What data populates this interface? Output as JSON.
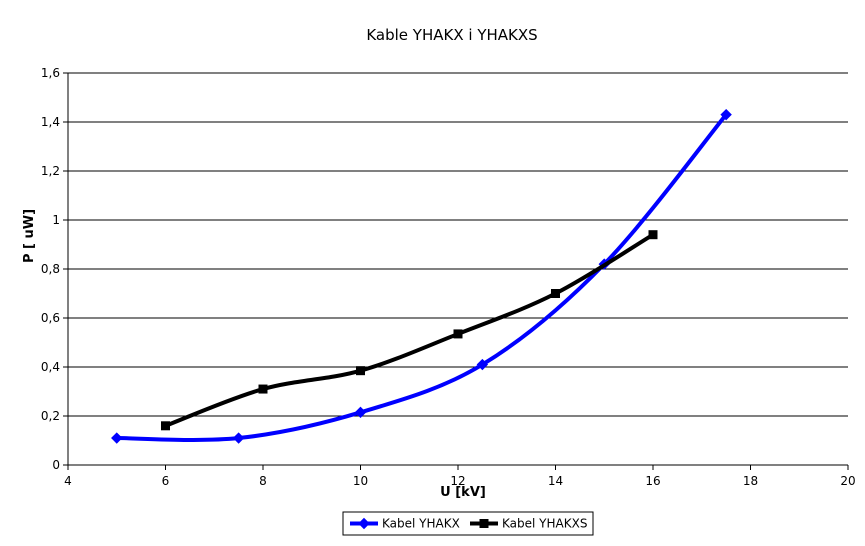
{
  "chart_data": {
    "type": "line",
    "title": "Kable YHAKX i YHAKXS",
    "xlabel": "U  [kV]",
    "ylabel": "P  [ uW]",
    "xlim": [
      4,
      20
    ],
    "ylim": [
      0,
      1.6
    ],
    "xticks": [
      4,
      6,
      8,
      10,
      12,
      14,
      16,
      18,
      20
    ],
    "yticks": [
      0,
      0.2,
      0.4,
      0.6,
      0.8,
      1.0,
      1.2,
      1.4,
      1.6
    ],
    "xtick_labels": [
      "4",
      "6",
      "8",
      "10",
      "12",
      "14",
      "16",
      "18",
      "20"
    ],
    "ytick_labels": [
      "0",
      "0,2",
      "0,4",
      "0,6",
      "0,8",
      "1",
      "1,2",
      "1,4",
      "1,6"
    ],
    "grid": "horizontal",
    "legend_position": "bottom",
    "series": [
      {
        "name": "Kabel YHAKX",
        "color": "#0000ff",
        "marker": "diamond",
        "x": [
          5,
          7.5,
          10,
          12.5,
          15,
          17.5
        ],
        "y": [
          0.11,
          0.11,
          0.215,
          0.41,
          0.82,
          1.43
        ]
      },
      {
        "name": "Kabel YHAKXS",
        "color": "#000000",
        "marker": "square",
        "x": [
          6,
          8,
          10,
          12,
          14,
          16
        ],
        "y": [
          0.16,
          0.31,
          0.385,
          0.535,
          0.7,
          0.94
        ]
      }
    ]
  }
}
